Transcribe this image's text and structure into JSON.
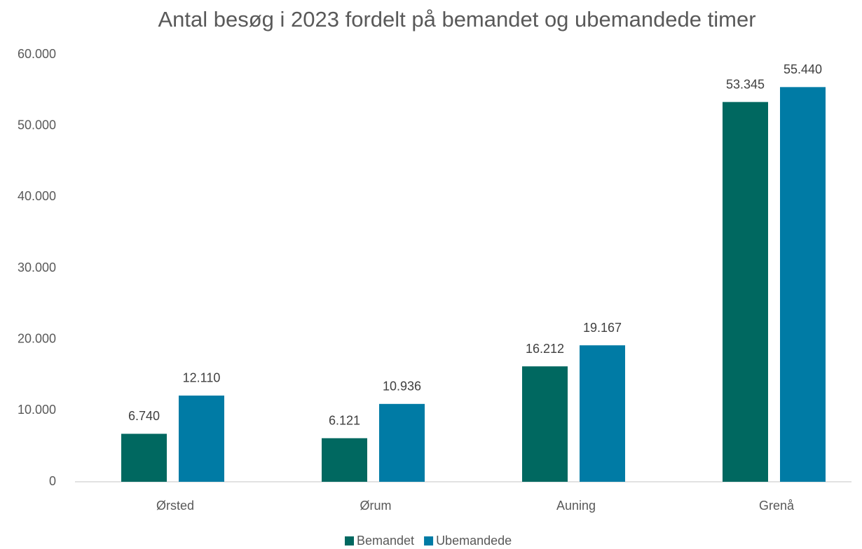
{
  "chart_data": {
    "type": "bar",
    "title": "Antal besøg i 2023 fordelt på bemandet og ubemandede timer",
    "categories": [
      "Ørsted",
      "Ørum",
      "Auning",
      "Grenå"
    ],
    "series": [
      {
        "name": "Bemandet",
        "color": "#006860",
        "values": [
          6740,
          6121,
          16212,
          53345
        ],
        "value_labels": [
          "6.740",
          "6.121",
          "16.212",
          "53.345"
        ]
      },
      {
        "name": "Ubemandede",
        "color": "#007ba5",
        "values": [
          12110,
          10936,
          19167,
          55440
        ],
        "value_labels": [
          "12.110",
          "10.936",
          "19.167",
          "55.440"
        ]
      }
    ],
    "ylim": [
      0,
      60000
    ],
    "yticks": [
      0,
      {
        "value": 10000,
        "label": "10.000"
      },
      {
        "value": 20000,
        "label": "20.000"
      },
      {
        "value": 30000,
        "label": "30.000"
      },
      {
        "value": 40000,
        "label": "40.000"
      },
      {
        "value": 50000,
        "label": "50.000"
      },
      {
        "value": 60000,
        "label": "60.000"
      }
    ],
    "grid": false,
    "legend": "bottom"
  }
}
